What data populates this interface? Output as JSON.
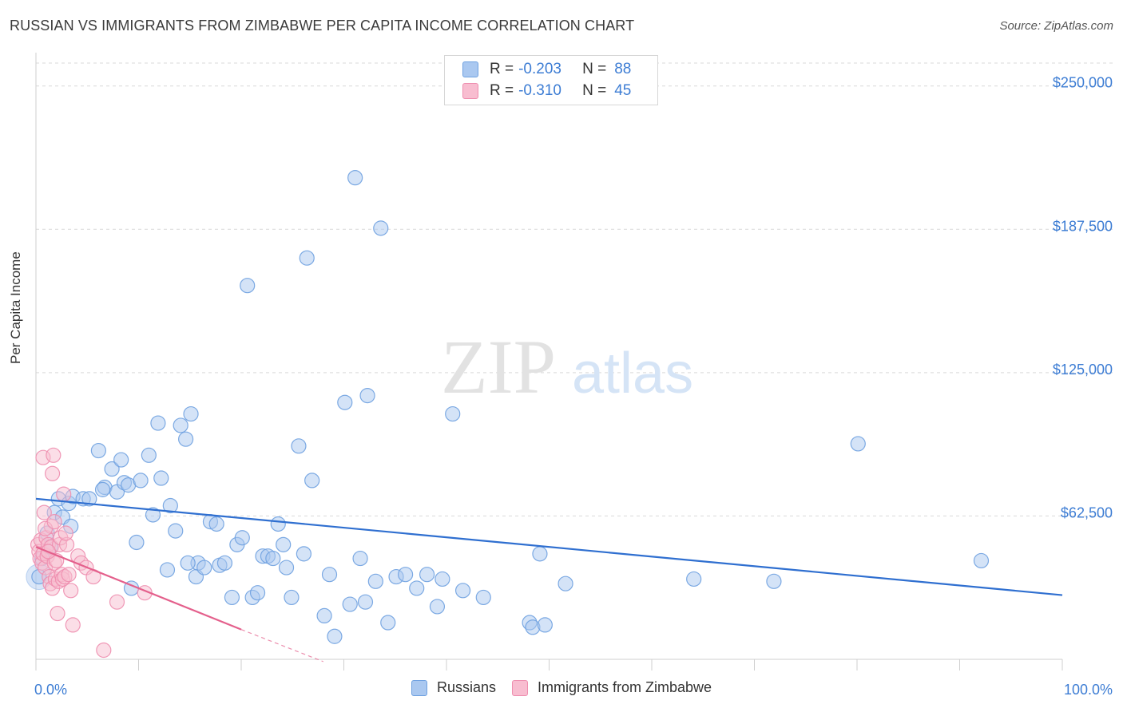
{
  "title": "RUSSIAN VS IMMIGRANTS FROM ZIMBABWE PER CAPITA INCOME CORRELATION CHART",
  "source": "Source: ZipAtlas.com",
  "watermark": {
    "zip": "ZIP",
    "atlas": "atlas"
  },
  "legend_top": [
    {
      "r_label": "R =",
      "r_value": "-0.203",
      "n_label": "N =",
      "n_value": "88"
    },
    {
      "r_label": "R =",
      "r_value": "-0.310",
      "n_label": "N =",
      "n_value": "45"
    }
  ],
  "legend_bottom": [
    {
      "label": "Russians"
    },
    {
      "label": "Immigrants from Zimbabwe"
    }
  ],
  "colors": {
    "blue_fill": "#aac8f0",
    "blue_stroke": "#6fa1e0",
    "blue_line": "#2f6fd0",
    "pink_fill": "#f8bdd0",
    "pink_stroke": "#ee8eaf",
    "pink_line": "#e4608c",
    "grid": "#d9d9d9",
    "axis_text": "#3d7dd4"
  },
  "chart_data": {
    "type": "scatter",
    "title": "RUSSIAN VS IMMIGRANTS FROM ZIMBABWE PER CAPITA INCOME CORRELATION CHART",
    "xlabel": "",
    "ylabel": "Per Capita Income",
    "xlim": [
      0,
      100
    ],
    "ylim": [
      0,
      260000
    ],
    "x_tick_labels": [
      "0.0%",
      "100.0%"
    ],
    "y_ticks": [
      62500,
      125000,
      187500,
      250000
    ],
    "y_tick_labels": [
      "$62,500",
      "$125,000",
      "$187,500",
      "$250,000"
    ],
    "series": [
      {
        "name": "Russians",
        "r": -0.203,
        "n": 88,
        "trend": {
          "x": [
            0,
            100
          ],
          "y": [
            70000,
            28000
          ]
        },
        "points": [
          [
            0.3,
            36000
          ],
          [
            0.6,
            44000
          ],
          [
            1.1,
            55000
          ],
          [
            1.8,
            64000
          ],
          [
            2.2,
            70000
          ],
          [
            2.6,
            62000
          ],
          [
            3.2,
            68000
          ],
          [
            3.6,
            71000
          ],
          [
            4.6,
            70000
          ],
          [
            5.2,
            70000
          ],
          [
            6.1,
            91000
          ],
          [
            6.7,
            75000
          ],
          [
            7.4,
            83000
          ],
          [
            7.9,
            73000
          ],
          [
            8.3,
            87000
          ],
          [
            8.6,
            77000
          ],
          [
            9.0,
            76000
          ],
          [
            9.8,
            51000
          ],
          [
            10.2,
            78000
          ],
          [
            11.0,
            89000
          ],
          [
            11.4,
            63000
          ],
          [
            11.9,
            103000
          ],
          [
            12.2,
            79000
          ],
          [
            12.8,
            39000
          ],
          [
            13.1,
            67000
          ],
          [
            13.6,
            56000
          ],
          [
            14.1,
            102000
          ],
          [
            14.6,
            96000
          ],
          [
            15.1,
            107000
          ],
          [
            15.6,
            36000
          ],
          [
            15.8,
            42000
          ],
          [
            16.4,
            40000
          ],
          [
            17.0,
            60000
          ],
          [
            17.6,
            59000
          ],
          [
            17.9,
            41000
          ],
          [
            18.4,
            42000
          ],
          [
            19.1,
            27000
          ],
          [
            19.6,
            50000
          ],
          [
            20.1,
            53000
          ],
          [
            20.6,
            163000
          ],
          [
            21.1,
            27000
          ],
          [
            21.6,
            29000
          ],
          [
            22.1,
            45000
          ],
          [
            22.6,
            45000
          ],
          [
            23.1,
            44000
          ],
          [
            23.6,
            59000
          ],
          [
            24.1,
            50000
          ],
          [
            24.4,
            40000
          ],
          [
            24.9,
            27000
          ],
          [
            25.6,
            93000
          ],
          [
            26.1,
            46000
          ],
          [
            26.4,
            175000
          ],
          [
            26.9,
            78000
          ],
          [
            28.1,
            19000
          ],
          [
            28.6,
            37000
          ],
          [
            29.1,
            10000
          ],
          [
            30.1,
            112000
          ],
          [
            30.6,
            24000
          ],
          [
            31.1,
            210000
          ],
          [
            31.6,
            44000
          ],
          [
            32.1,
            25000
          ],
          [
            32.3,
            115000
          ],
          [
            33.1,
            34000
          ],
          [
            33.6,
            188000
          ],
          [
            34.3,
            16000
          ],
          [
            35.1,
            36000
          ],
          [
            36.0,
            37000
          ],
          [
            37.1,
            31000
          ],
          [
            38.1,
            37000
          ],
          [
            39.1,
            23000
          ],
          [
            39.6,
            35000
          ],
          [
            40.6,
            107000
          ],
          [
            41.6,
            30000
          ],
          [
            43.6,
            27000
          ],
          [
            48.1,
            16000
          ],
          [
            48.4,
            14000
          ],
          [
            49.1,
            46000
          ],
          [
            49.6,
            15000
          ],
          [
            51.6,
            33000
          ],
          [
            64.1,
            35000
          ],
          [
            71.9,
            34000
          ],
          [
            80.1,
            94000
          ],
          [
            92.1,
            43000
          ],
          [
            1.4,
            49000
          ],
          [
            3.4,
            58000
          ],
          [
            6.5,
            74000
          ],
          [
            9.3,
            31000
          ],
          [
            14.8,
            42000
          ]
        ]
      },
      {
        "name": "Immigrants from Zimbabwe",
        "r": -0.31,
        "n": 45,
        "trend": {
          "x": [
            0,
            20
          ],
          "y": [
            49000,
            13000
          ]
        },
        "trend_dashed": {
          "x": [
            20,
            28
          ],
          "y": [
            13000,
            -1000
          ]
        },
        "points": [
          [
            0.2,
            50000
          ],
          [
            0.3,
            47000
          ],
          [
            0.4,
            44000
          ],
          [
            0.5,
            52000
          ],
          [
            0.6,
            42000
          ],
          [
            0.7,
            88000
          ],
          [
            0.7,
            46000
          ],
          [
            0.8,
            64000
          ],
          [
            0.9,
            40000
          ],
          [
            1.0,
            53000
          ],
          [
            1.1,
            45000
          ],
          [
            1.2,
            50000
          ],
          [
            1.3,
            36000
          ],
          [
            1.4,
            33000
          ],
          [
            1.5,
            58000
          ],
          [
            1.5,
            49000
          ],
          [
            1.6,
            31000
          ],
          [
            1.6,
            81000
          ],
          [
            1.7,
            89000
          ],
          [
            1.8,
            42000
          ],
          [
            1.9,
            35000
          ],
          [
            2.0,
            43000
          ],
          [
            2.1,
            20000
          ],
          [
            2.2,
            34000
          ],
          [
            2.3,
            50000
          ],
          [
            2.4,
            53000
          ],
          [
            2.5,
            37000
          ],
          [
            2.6,
            35000
          ],
          [
            2.7,
            72000
          ],
          [
            2.8,
            36000
          ],
          [
            3.0,
            50000
          ],
          [
            3.2,
            37000
          ],
          [
            3.4,
            30000
          ],
          [
            3.6,
            15000
          ],
          [
            4.1,
            45000
          ],
          [
            4.4,
            42000
          ],
          [
            4.9,
            40000
          ],
          [
            5.6,
            36000
          ],
          [
            6.6,
            4000
          ],
          [
            7.9,
            25000
          ],
          [
            10.6,
            29000
          ],
          [
            1.2,
            47000
          ],
          [
            2.9,
            55000
          ],
          [
            0.9,
            57000
          ],
          [
            1.8,
            60000
          ]
        ]
      }
    ]
  }
}
